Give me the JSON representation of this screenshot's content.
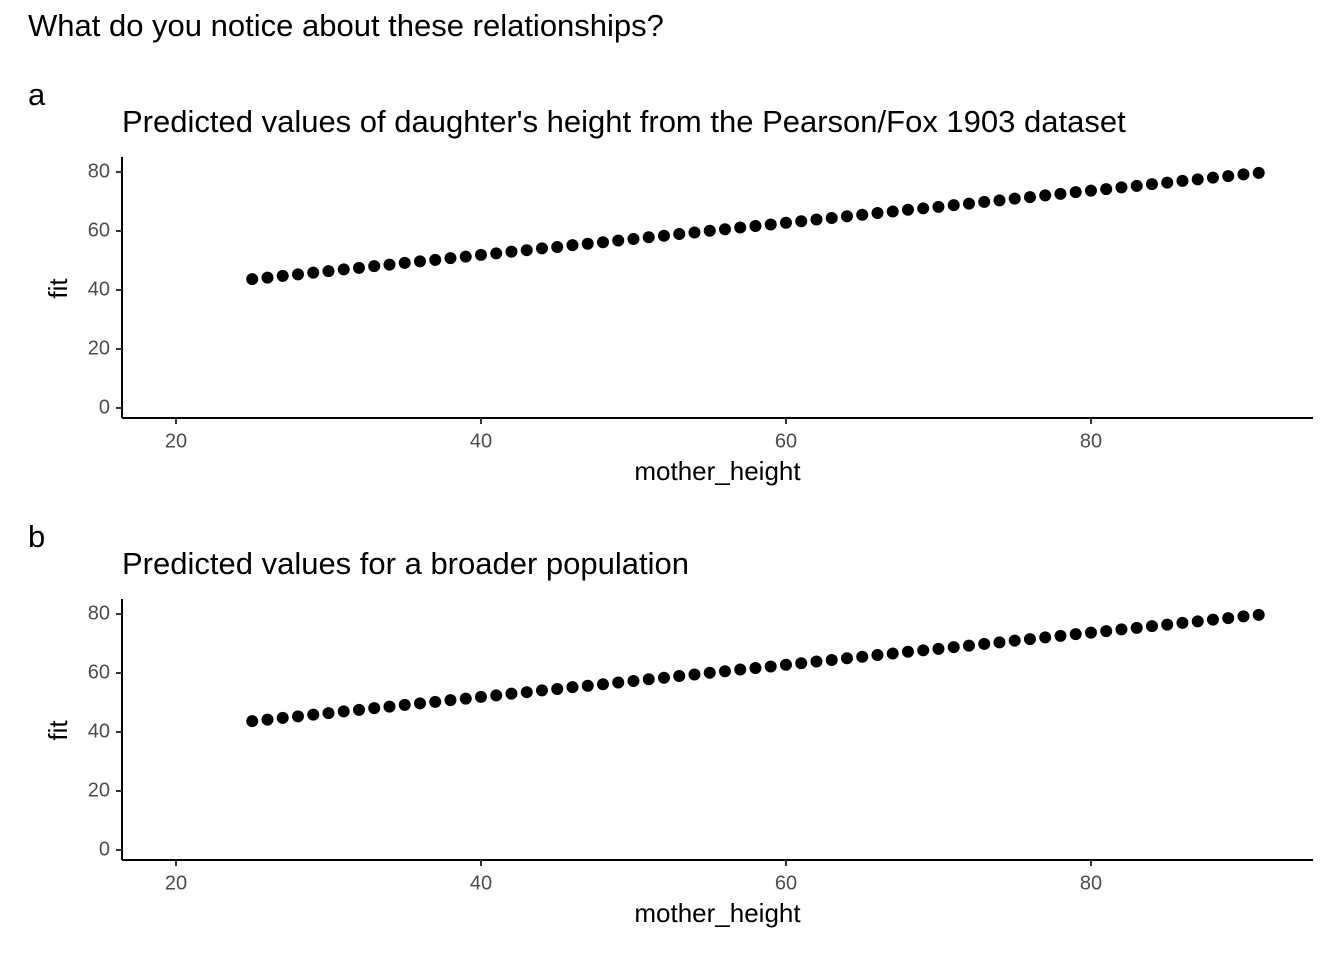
{
  "question": "What do you notice about these relationships?",
  "chart_data": [
    {
      "type": "scatter",
      "panel_label": "a",
      "title": "Predicted values of daughter's height from the Pearson/Fox 1903 dataset",
      "x_label": "mother_height",
      "y_label": "fit",
      "color": "#000000",
      "x": [
        25,
        26,
        27,
        28,
        29,
        30,
        31,
        32,
        33,
        34,
        35,
        36,
        37,
        38,
        39,
        40,
        41,
        42,
        43,
        44,
        45,
        46,
        47,
        48,
        49,
        50,
        51,
        52,
        53,
        54,
        55,
        56,
        57,
        58,
        59,
        60,
        61,
        62,
        63,
        64,
        65,
        66,
        67,
        68,
        69,
        70,
        71,
        72,
        73,
        74,
        75,
        76,
        77,
        78,
        79,
        80,
        81,
        82,
        83,
        84,
        85,
        86,
        87,
        88,
        89,
        90,
        91
      ],
      "values": [
        43.7,
        44.2,
        44.8,
        45.3,
        45.9,
        46.4,
        47.0,
        47.5,
        48.1,
        48.6,
        49.2,
        49.7,
        50.2,
        50.8,
        51.3,
        51.9,
        52.4,
        53.0,
        53.5,
        54.1,
        54.6,
        55.2,
        55.7,
        56.2,
        56.8,
        57.3,
        57.9,
        58.4,
        59.0,
        59.5,
        60.1,
        60.6,
        61.2,
        61.7,
        62.2,
        62.8,
        63.3,
        63.9,
        64.4,
        65.0,
        65.5,
        66.1,
        66.6,
        67.2,
        67.7,
        68.2,
        68.8,
        69.3,
        69.9,
        70.4,
        71.0,
        71.5,
        72.1,
        72.6,
        73.2,
        73.7,
        74.2,
        74.8,
        75.3,
        75.9,
        76.4,
        77.0,
        77.5,
        78.1,
        78.6,
        79.2,
        79.7
      ],
      "xlim": [
        16.46,
        94.56
      ],
      "ylim": [
        -3.4,
        85.1
      ],
      "xticks": [
        20,
        40,
        60,
        80
      ],
      "yticks": [
        0,
        20,
        40,
        60,
        80
      ]
    },
    {
      "type": "scatter",
      "panel_label": "b",
      "title": "Predicted values for a broader population",
      "x_label": "mother_height",
      "y_label": "fit",
      "color": "#000000",
      "x": [
        25,
        26,
        27,
        28,
        29,
        30,
        31,
        32,
        33,
        34,
        35,
        36,
        37,
        38,
        39,
        40,
        41,
        42,
        43,
        44,
        45,
        46,
        47,
        48,
        49,
        50,
        51,
        52,
        53,
        54,
        55,
        56,
        57,
        58,
        59,
        60,
        61,
        62,
        63,
        64,
        65,
        66,
        67,
        68,
        69,
        70,
        71,
        72,
        73,
        74,
        75,
        76,
        77,
        78,
        79,
        80,
        81,
        82,
        83,
        84,
        85,
        86,
        87,
        88,
        89,
        90,
        91
      ],
      "values": [
        43.7,
        44.2,
        44.8,
        45.3,
        45.9,
        46.4,
        47.0,
        47.5,
        48.1,
        48.6,
        49.2,
        49.7,
        50.2,
        50.8,
        51.3,
        51.9,
        52.4,
        53.0,
        53.5,
        54.1,
        54.6,
        55.2,
        55.7,
        56.2,
        56.8,
        57.3,
        57.9,
        58.4,
        59.0,
        59.5,
        60.1,
        60.6,
        61.2,
        61.7,
        62.2,
        62.8,
        63.3,
        63.9,
        64.4,
        65.0,
        65.5,
        66.1,
        66.6,
        67.2,
        67.7,
        68.2,
        68.8,
        69.3,
        69.9,
        70.4,
        71.0,
        71.5,
        72.1,
        72.6,
        73.2,
        73.7,
        74.2,
        74.8,
        75.3,
        75.9,
        76.4,
        77.0,
        77.5,
        78.1,
        78.6,
        79.2,
        79.7
      ],
      "xlim": [
        16.46,
        94.56
      ],
      "ylim": [
        -3.4,
        85.1
      ],
      "xticks": [
        20,
        40,
        60,
        80
      ],
      "yticks": [
        0,
        20,
        40,
        60,
        80
      ]
    }
  ]
}
